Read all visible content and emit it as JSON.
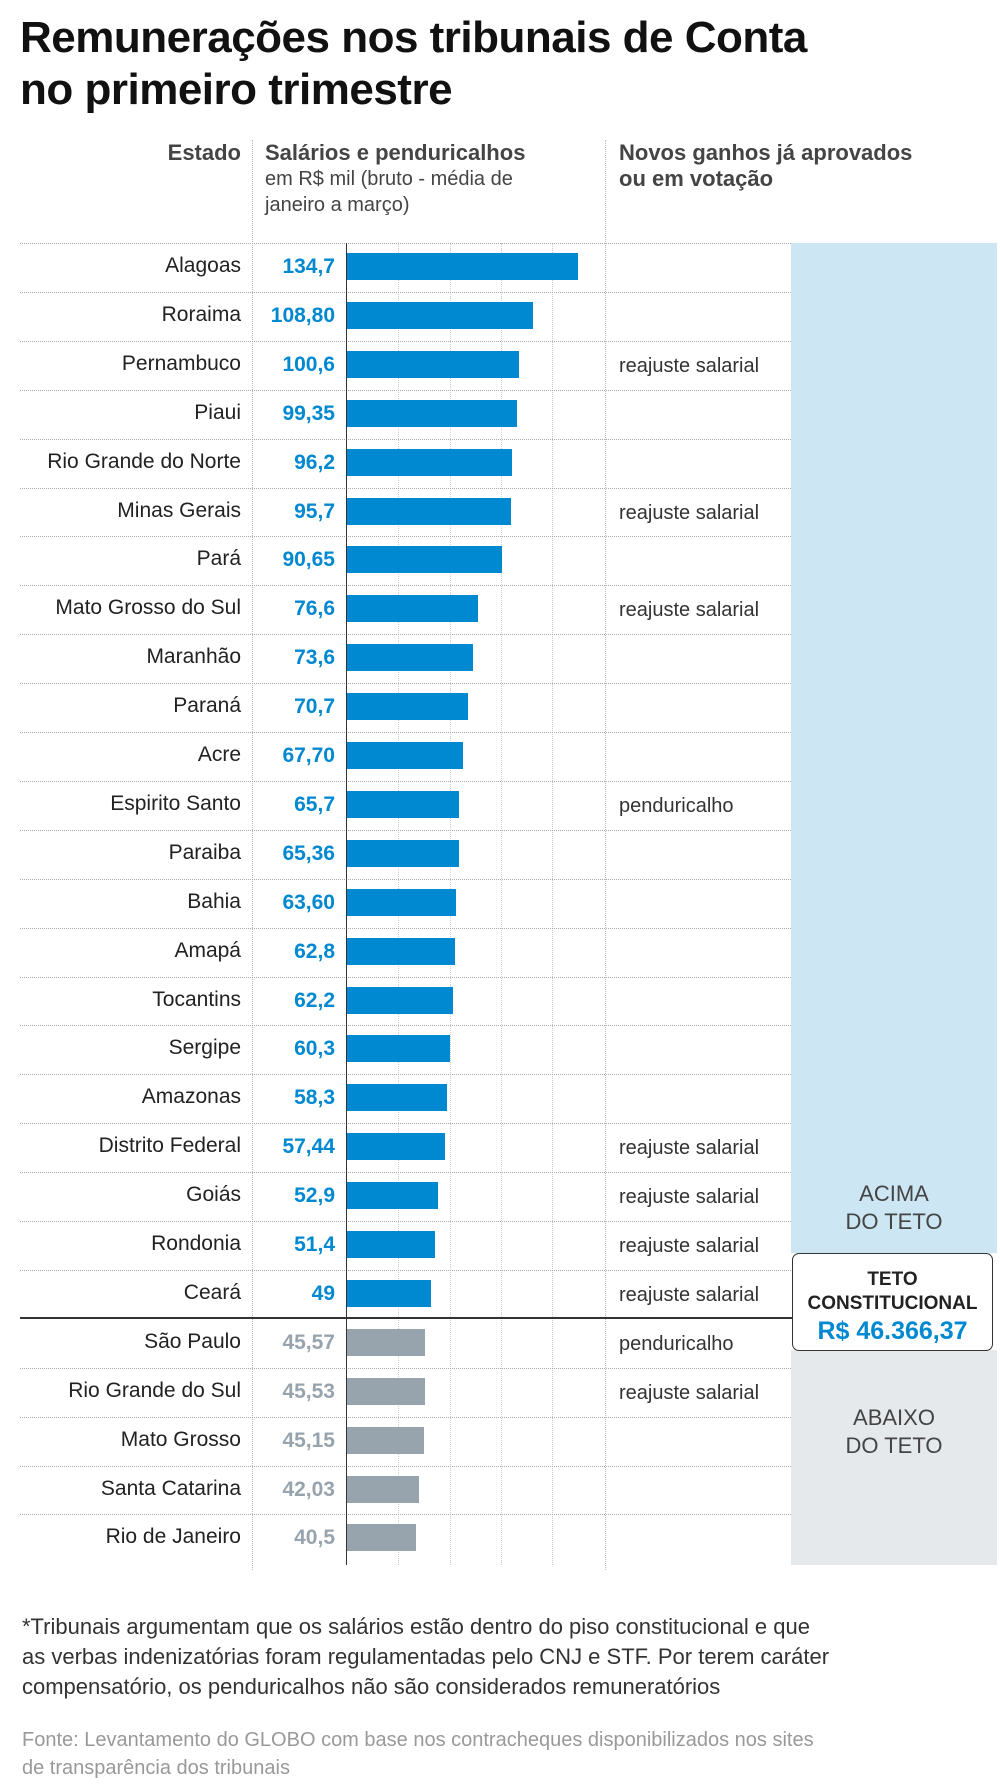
{
  "title": [
    "Remunerações nos tribunais de Conta",
    "no primeiro trimestre"
  ],
  "headers": {
    "state": "Estado",
    "salary": "Salários e penduricalhos",
    "salary_sub": [
      "em R$ mil (bruto - média de",
      "janeiro a março)"
    ],
    "gains": [
      "Novos ganhos já aprovados",
      "ou em votação"
    ]
  },
  "panels": {
    "above": [
      "ACIMA",
      "DO TETO"
    ],
    "ceiling_label": [
      "TETO",
      "CONSTITUCIONAL"
    ],
    "ceiling_value": "R$ 46.366,37",
    "below": [
      "ABAIXO",
      "DO TETO"
    ]
  },
  "colors": {
    "above": "#0088d1",
    "below": "#98a4ad",
    "above_panel": "#cde6f4",
    "below_panel": "#e6e9ec"
  },
  "chart_data": {
    "type": "bar",
    "orientation": "horizontal",
    "xlim": [
      0,
      134.7
    ],
    "grid": true,
    "ceiling": 46.36637,
    "categories": [
      "Alagoas",
      "Roraima",
      "Pernambuco",
      "Piaui",
      "Rio Grande do Norte",
      "Minas Gerais",
      "Pará",
      "Mato Grosso do Sul",
      "Maranhão",
      "Paraná",
      "Acre",
      "Espirito Santo",
      "Paraiba",
      "Bahia",
      "Amapá",
      "Tocantins",
      "Sergipe",
      "Amazonas",
      "Distrito Federal",
      "Goiás",
      "Rondonia",
      "Ceará",
      "São Paulo",
      "Rio Grande do Sul",
      "Mato Grosso",
      "Santa Catarina",
      "Rio de Janeiro"
    ],
    "values": [
      134.7,
      108.8,
      100.6,
      99.35,
      96.2,
      95.7,
      90.65,
      76.6,
      73.6,
      70.7,
      67.7,
      65.7,
      65.36,
      63.6,
      62.8,
      62.2,
      60.3,
      58.3,
      57.44,
      52.9,
      51.4,
      49,
      45.57,
      45.53,
      45.15,
      42.03,
      40.5
    ],
    "value_labels": [
      "134,7",
      "108,80",
      "100,6",
      "99,35",
      "96,2",
      "95,7",
      "90,65",
      "76,6",
      "73,6",
      "70,7",
      "67,70",
      "65,7",
      "65,36",
      "63,60",
      "62,8",
      "62,2",
      "60,3",
      "58,3",
      "57,44",
      "52,9",
      "51,4",
      "49",
      "45,57",
      "45,53",
      "45,15",
      "42,03",
      "40,5"
    ],
    "notes": [
      "",
      "",
      "reajuste salarial",
      "",
      "",
      "reajuste salarial",
      "",
      "reajuste salarial",
      "",
      "",
      "",
      "penduricalho",
      "",
      "",
      "",
      "",
      "",
      "",
      "reajuste salarial",
      "reajuste salarial",
      "reajuste salarial",
      "reajuste salarial",
      "penduricalho",
      "reajuste salarial",
      "",
      "",
      ""
    ]
  },
  "footnote": [
    "*Tribunais argumentam que os salários estão dentro do piso constitucional e que",
    "as verbas indenizatórias foram regulamentadas pelo CNJ e STF. Por terem caráter",
    "compensatório, os penduricalhos não são considerados remuneratórios"
  ],
  "source": [
    "Fonte: Levantamento do GLOBO com base nos contracheques disponibilizados nos sites",
    "de transparência dos tribunais"
  ]
}
